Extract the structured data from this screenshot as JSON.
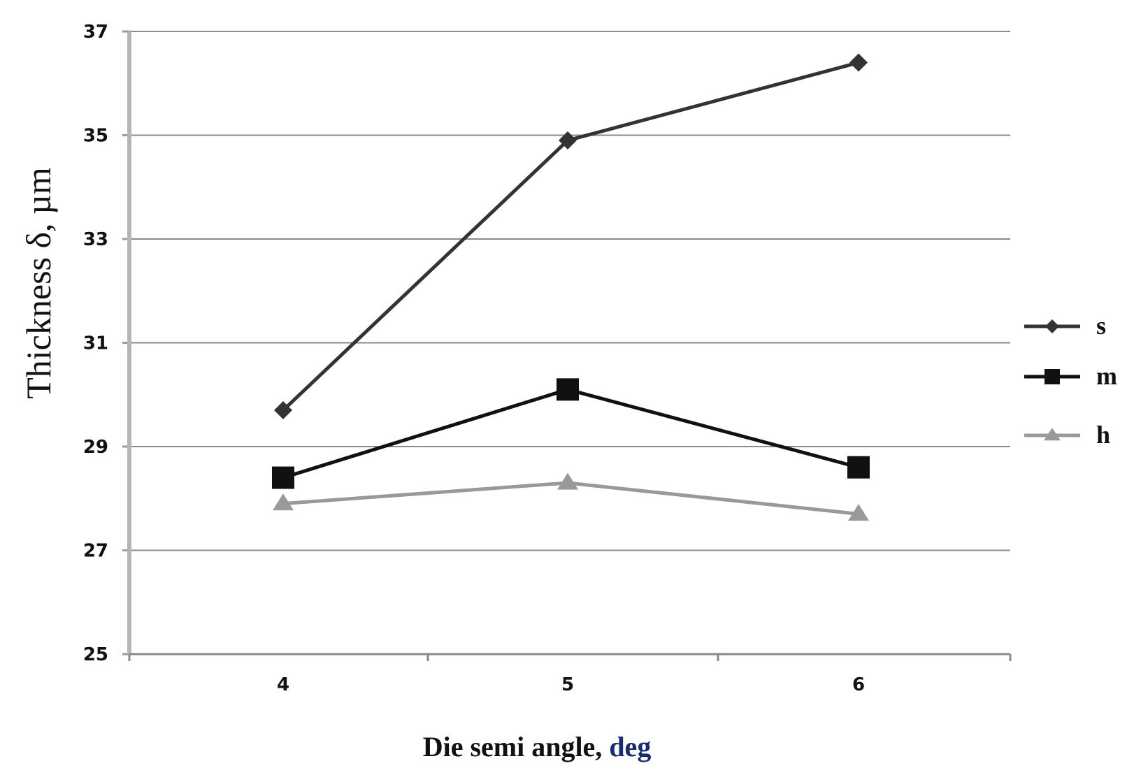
{
  "chart_data": {
    "type": "line",
    "x": [
      4,
      5,
      6
    ],
    "x_tick_labels": [
      "4",
      "5",
      "6"
    ],
    "y_tick_labels": [
      "25",
      "27",
      "29",
      "31",
      "33",
      "35",
      "37"
    ],
    "xlabel": "Die semi angle, ",
    "xlabel_unit": "deg",
    "ylabel": "Thickness δ, µm",
    "ylim": [
      25,
      37
    ],
    "grid": true,
    "legend_position": "right",
    "series": [
      {
        "name": "s",
        "values": [
          29.7,
          34.9,
          36.4
        ],
        "color": "#333333",
        "marker": "diamond"
      },
      {
        "name": "m",
        "values": [
          28.4,
          30.1,
          28.6
        ],
        "color": "#111111",
        "marker": "square"
      },
      {
        "name": "h",
        "values": [
          27.9,
          28.3,
          27.7
        ],
        "color": "#999999",
        "marker": "triangle"
      }
    ]
  }
}
